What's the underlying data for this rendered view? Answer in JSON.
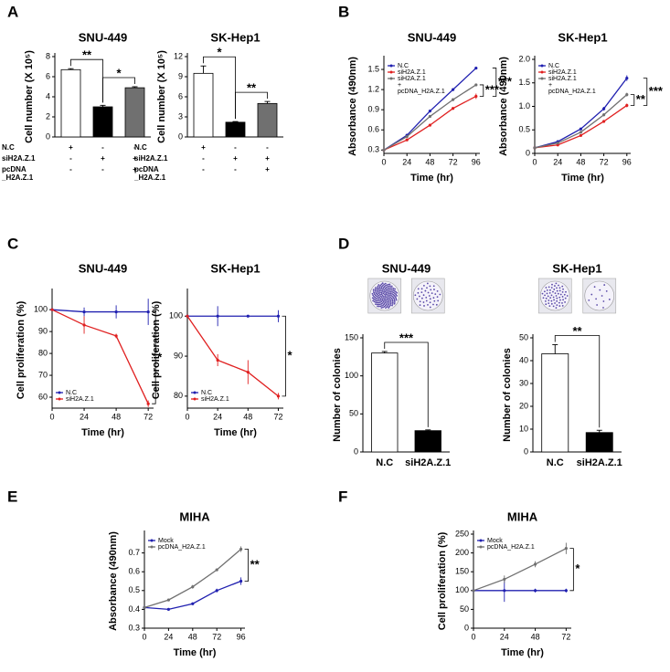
{
  "chart_data": [
    {
      "type": "bar",
      "panel": "A",
      "title": "SNU-449",
      "ylabel": "Cell number (X 10⁵)",
      "values": [
        6.7,
        3.0,
        4.9
      ],
      "errors": [
        0.1,
        0.15,
        0.1
      ],
      "colors": [
        "#ffffff",
        "#000000",
        "#707070"
      ],
      "ylim": [
        0,
        8
      ],
      "yticks": [
        0,
        2,
        4,
        6,
        8
      ],
      "annotations": [
        "**",
        "*"
      ],
      "conditions": [
        {
          "name": [
            "N.C"
          ],
          "signs": [
            "+",
            "-",
            "-"
          ]
        },
        {
          "name": [
            "siH2A.Z.1"
          ],
          "signs": [
            "-",
            "+",
            "+"
          ]
        },
        {
          "name": [
            "pcDNA",
            "_H2A.Z.1"
          ],
          "signs": [
            "-",
            "-",
            "+"
          ]
        }
      ]
    },
    {
      "type": "bar",
      "title": "SK-Hep1",
      "ylabel": "Cell number (X 10⁵)",
      "values": [
        9.5,
        2.2,
        5.0
      ],
      "errors": [
        1.1,
        0.1,
        0.3
      ],
      "colors": [
        "#ffffff",
        "#000000",
        "#707070"
      ],
      "ylim": [
        0,
        12
      ],
      "yticks": [
        0,
        3,
        6,
        9,
        12
      ],
      "annotations": [
        "*",
        "**"
      ],
      "conditions": [
        {
          "name": [
            "N.C"
          ],
          "signs": [
            "+",
            "-",
            "-"
          ]
        },
        {
          "name": [
            "siH2A.Z.1"
          ],
          "signs": [
            "-",
            "+",
            "+"
          ]
        },
        {
          "name": [
            "pcDNA",
            "_H2A.Z.1"
          ],
          "signs": [
            "-",
            "-",
            "+"
          ]
        }
      ]
    },
    {
      "type": "line",
      "panel": "B",
      "title": "SNU-449",
      "ylabel": "Absorbance (490nm)",
      "xlabel": "Time (hr)",
      "x": [
        0,
        24,
        48,
        72,
        96
      ],
      "xlim": [
        0,
        100
      ],
      "xticks": [
        0,
        24,
        48,
        72,
        96
      ],
      "ylim": [
        0.25,
        1.65
      ],
      "yticks": [
        0.3,
        0.6,
        0.9,
        1.2,
        1.5
      ],
      "legend": "upper left",
      "annotations": [
        "***",
        "***"
      ],
      "series": [
        {
          "name": [
            "N.C"
          ],
          "color": "#2020b0",
          "values": [
            0.3,
            0.52,
            0.88,
            1.2,
            1.52
          ],
          "errors": [
            0.01,
            0.01,
            0.01,
            0.02,
            0.02
          ]
        },
        {
          "name": [
            "siH2A.Z.1"
          ],
          "color": "#e02020",
          "values": [
            0.3,
            0.45,
            0.67,
            0.92,
            1.1
          ],
          "errors": [
            0.01,
            0.01,
            0.01,
            0.02,
            0.04
          ]
        },
        {
          "name": [
            "siH2A.Z.1",
            "+",
            "pcDNA_H2A.Z.1"
          ],
          "color": "#707070",
          "values": [
            0.3,
            0.5,
            0.8,
            1.05,
            1.27
          ],
          "errors": [
            0.01,
            0.01,
            0.01,
            0.02,
            0.02
          ]
        }
      ]
    },
    {
      "type": "line",
      "title": "SK-Hep1",
      "ylabel": "Absorbance (490nm)",
      "xlabel": "Time (hr)",
      "x": [
        0,
        24,
        48,
        72,
        96
      ],
      "xlim": [
        0,
        100
      ],
      "xticks": [
        0,
        24,
        48,
        72,
        96
      ],
      "ylim": [
        0,
        2.0
      ],
      "yticks": [
        0,
        0.5,
        {
          "value": 1,
          "label": "1.0"
        },
        1.5,
        {
          "value": 2,
          "label": "2.0"
        }
      ],
      "legend": "upper left",
      "annotations": [
        "***",
        "**"
      ],
      "series": [
        {
          "name": [
            "N.C"
          ],
          "color": "#2020b0",
          "values": [
            0.12,
            0.25,
            0.52,
            0.95,
            1.6
          ],
          "errors": [
            0.01,
            0.01,
            0.02,
            0.04,
            0.06
          ]
        },
        {
          "name": [
            "siH2A.Z.1"
          ],
          "color": "#e02020",
          "values": [
            0.12,
            0.18,
            0.38,
            0.68,
            1.02
          ],
          "errors": [
            0.01,
            0.01,
            0.02,
            0.03,
            0.04
          ]
        },
        {
          "name": [
            "siH2A.Z.1",
            "+",
            "pcDNA_H2A.Z.1"
          ],
          "color": "#707070",
          "values": [
            0.12,
            0.22,
            0.45,
            0.82,
            1.25
          ],
          "errors": [
            0.01,
            0.01,
            0.02,
            0.03,
            0.04
          ]
        }
      ]
    },
    {
      "type": "line",
      "panel": "C",
      "title": "SNU-449",
      "ylabel": "Cell proliferation (%)",
      "xlabel": "Time (hr)",
      "x": [
        0,
        24,
        48,
        72
      ],
      "xlim": [
        0,
        76
      ],
      "xticks": [
        0,
        24,
        48,
        72
      ],
      "ylim": [
        55,
        108
      ],
      "yticks": [
        60,
        70,
        80,
        90,
        100
      ],
      "legend": "lower left",
      "annotations": [
        "*"
      ],
      "series": [
        {
          "name": [
            "N.C"
          ],
          "color": "#2020b0",
          "values": [
            100,
            99,
            99,
            99
          ],
          "errors": [
            0,
            2,
            3,
            6
          ]
        },
        {
          "name": [
            "siH2A.Z.1"
          ],
          "color": "#e02020",
          "values": [
            100,
            93,
            88,
            57
          ],
          "errors": [
            0,
            4,
            1,
            1.5
          ]
        }
      ]
    },
    {
      "type": "line",
      "title": "SK-Hep1",
      "ylabel": "Cell proliferation (%)",
      "xlabel": "Time (hr)",
      "x": [
        0,
        24,
        48,
        72
      ],
      "xlim": [
        0,
        76
      ],
      "xticks": [
        0,
        24,
        48,
        72
      ],
      "ylim": [
        77,
        106
      ],
      "yticks": [
        80,
        90,
        100
      ],
      "legend": "lower left",
      "annotations": [
        "*"
      ],
      "series": [
        {
          "name": [
            "N.C"
          ],
          "color": "#2020b0",
          "values": [
            100,
            100,
            100,
            100
          ],
          "errors": [
            0,
            2.5,
            0,
            1.5
          ]
        },
        {
          "name": [
            "siH2A.Z.1"
          ],
          "color": "#e02020",
          "values": [
            100,
            89,
            86,
            80
          ],
          "errors": [
            0,
            1.5,
            3,
            0.8
          ]
        }
      ]
    },
    {
      "type": "bar",
      "panel": "D",
      "title": "SNU-449",
      "ylabel": "Number of colonies",
      "categories": [
        "N.C",
        "siH2A.Z.1"
      ],
      "values": [
        130,
        28
      ],
      "errors": [
        2,
        1
      ],
      "colors": [
        "#ffffff",
        "#000000"
      ],
      "ylim": [
        0,
        150
      ],
      "yticks": [
        0,
        50,
        100,
        150
      ],
      "annotations": [
        "***"
      ]
    },
    {
      "type": "bar",
      "title": "SK-Hep1",
      "ylabel": "Number of colonies",
      "categories": [
        "N.C",
        "siH2A.Z.1"
      ],
      "values": [
        43,
        8.5
      ],
      "errors": [
        4,
        1
      ],
      "colors": [
        "#ffffff",
        "#000000"
      ],
      "ylim": [
        0,
        50
      ],
      "yticks": [
        0,
        10,
        20,
        30,
        40,
        50
      ],
      "annotations": [
        "**"
      ]
    },
    {
      "type": "line",
      "panel": "E",
      "title": "MIHA",
      "ylabel": "Absorbance (490nm)",
      "xlabel": "Time (hr)",
      "x": [
        0,
        24,
        48,
        72,
        96
      ],
      "xlim": [
        0,
        100
      ],
      "xticks": [
        0,
        24,
        48,
        72,
        96
      ],
      "ylim": [
        0.3,
        0.8
      ],
      "yticks": [
        0.3,
        0.4,
        0.5,
        0.6,
        0.7
      ],
      "legend": "upper left",
      "annotations": [
        "**"
      ],
      "series": [
        {
          "name": [
            "Mock"
          ],
          "color": "#2020b0",
          "values": [
            0.41,
            0.4,
            0.43,
            0.5,
            0.55
          ],
          "errors": [
            0,
            0,
            0,
            0.01,
            0.02
          ]
        },
        {
          "name": [
            "pcDNA_H2A.Z.1"
          ],
          "color": "#707070",
          "values": [
            0.41,
            0.45,
            0.52,
            0.61,
            0.72
          ],
          "errors": [
            0,
            0.005,
            0.01,
            0.005,
            0.015
          ]
        }
      ]
    },
    {
      "type": "line",
      "panel": "F",
      "title": "MIHA",
      "ylabel": "Cell proliferation (%)",
      "xlabel": "Time (hr)",
      "x": [
        0,
        24,
        48,
        72
      ],
      "xlim": [
        0,
        76
      ],
      "xticks": [
        0,
        24,
        48,
        72
      ],
      "ylim": [
        0,
        250
      ],
      "yticks": [
        0,
        50,
        100,
        150,
        200,
        250
      ],
      "legend": "upper left",
      "annotations": [
        "*"
      ],
      "series": [
        {
          "name": [
            "Mock"
          ],
          "color": "#2020b0",
          "values": [
            100,
            100,
            100,
            100
          ],
          "errors": [
            0,
            30,
            5,
            5
          ]
        },
        {
          "name": [
            "pcDNA_H2A.Z.1"
          ],
          "color": "#707070",
          "values": [
            100,
            130,
            170,
            212
          ],
          "errors": [
            0,
            10,
            8,
            15
          ]
        }
      ]
    }
  ]
}
